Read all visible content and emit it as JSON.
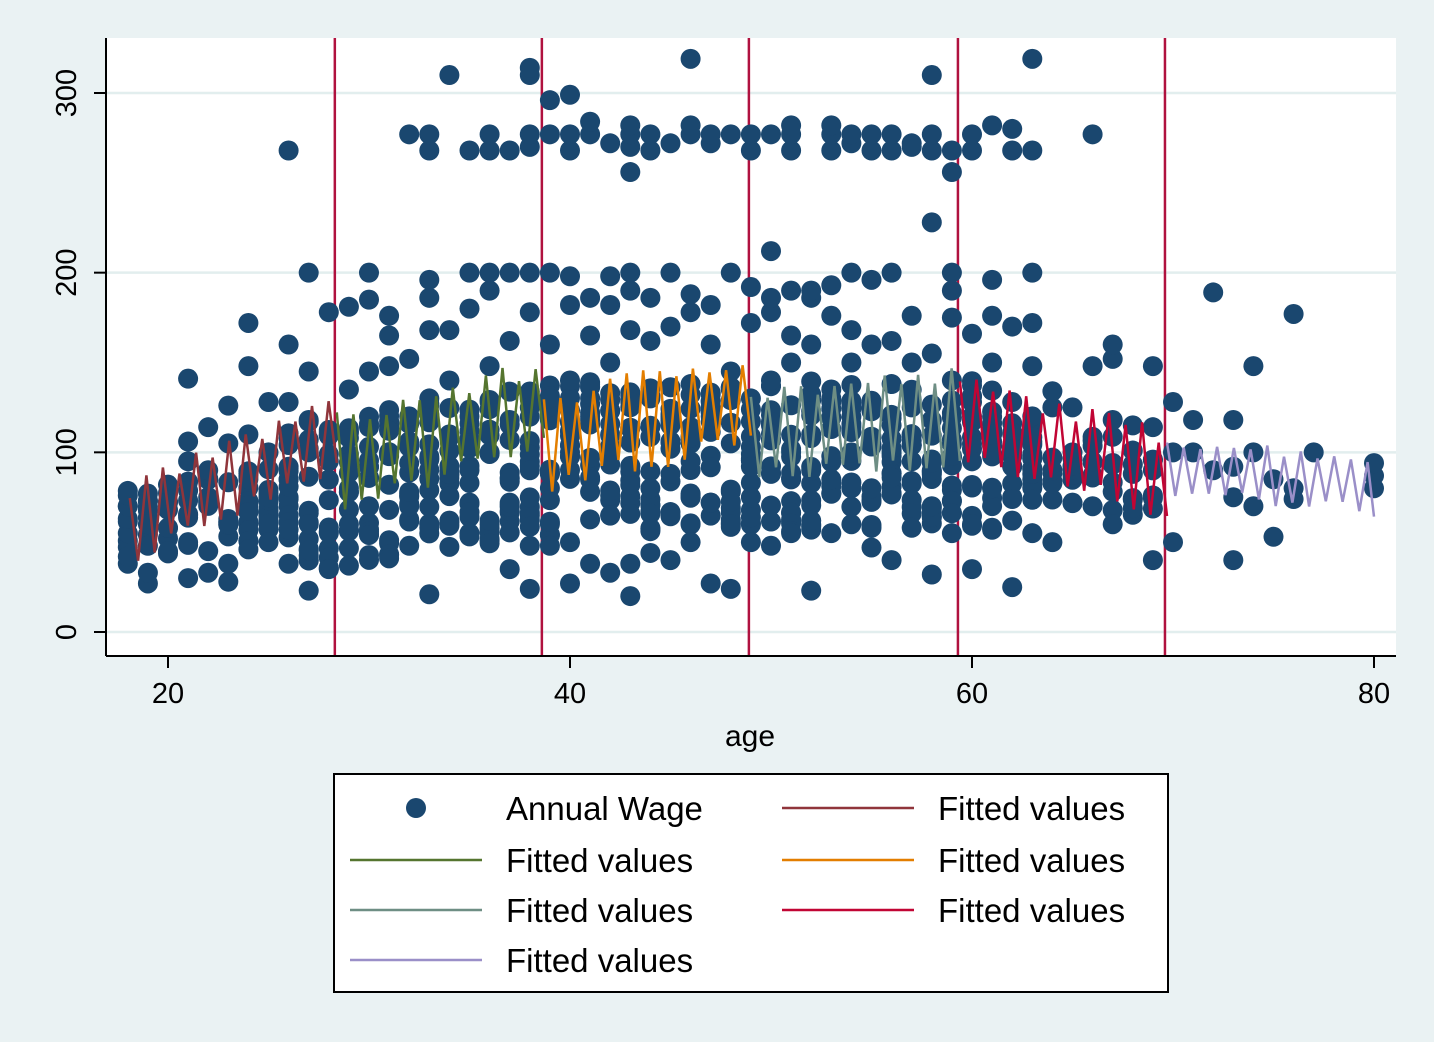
{
  "chart_data": {
    "type": "scatter",
    "title": "",
    "xlabel": "age",
    "ylabel": "",
    "xlim": [
      18,
      80
    ],
    "ylim": [
      -10,
      330
    ],
    "x_ticks": [
      20,
      40,
      60,
      80
    ],
    "y_ticks": [
      0,
      100,
      200,
      300
    ],
    "grid": "horizontal",
    "legend_position": "bottom",
    "knots": [
      28.3,
      38.6,
      48.9,
      59.3,
      69.6
    ],
    "knot_color": "#b0113f",
    "background_color": "#eaf2f3",
    "plot_background": "#ffffff",
    "scatter": {
      "name": "Annual Wage",
      "color": "#1a476f",
      "points": [
        [
          18,
          42
        ],
        [
          18,
          55
        ],
        [
          18,
          63
        ],
        [
          18,
          70
        ],
        [
          18,
          76
        ],
        [
          19,
          27
        ],
        [
          19,
          33
        ],
        [
          19,
          48
        ],
        [
          19,
          60
        ],
        [
          19,
          77
        ],
        [
          20,
          45
        ],
        [
          20,
          58
        ],
        [
          20,
          68
        ],
        [
          20,
          82
        ],
        [
          21,
          30
        ],
        [
          21,
          50
        ],
        [
          21,
          65
        ],
        [
          21,
          95
        ],
        [
          21,
          106
        ],
        [
          21,
          141
        ],
        [
          22,
          33
        ],
        [
          22,
          45
        ],
        [
          22,
          72
        ],
        [
          22,
          90
        ],
        [
          22,
          114
        ],
        [
          23,
          28
        ],
        [
          23,
          38
        ],
        [
          23,
          60
        ],
        [
          23,
          105
        ],
        [
          23,
          126
        ],
        [
          24,
          46
        ],
        [
          24,
          85
        ],
        [
          24,
          110
        ],
        [
          24,
          148
        ],
        [
          24,
          172
        ],
        [
          25,
          50
        ],
        [
          25,
          75
        ],
        [
          25,
          100
        ],
        [
          25,
          128
        ],
        [
          26,
          38
        ],
        [
          26,
          57
        ],
        [
          26,
          92
        ],
        [
          26,
          128
        ],
        [
          26,
          160
        ],
        [
          26,
          268
        ],
        [
          27,
          23
        ],
        [
          27,
          60
        ],
        [
          27,
          118
        ],
        [
          27,
          145
        ],
        [
          27,
          200
        ],
        [
          28,
          35
        ],
        [
          28,
          55
        ],
        [
          28,
          95
        ],
        [
          28,
          178
        ],
        [
          29,
          60
        ],
        [
          29,
          80
        ],
        [
          29,
          108
        ],
        [
          29,
          135
        ],
        [
          29,
          181
        ],
        [
          30,
          54
        ],
        [
          30,
          70
        ],
        [
          30,
          92
        ],
        [
          30,
          145
        ],
        [
          30,
          185
        ],
        [
          30,
          200
        ],
        [
          31,
          41
        ],
        [
          31,
          68
        ],
        [
          31,
          112
        ],
        [
          31,
          148
        ],
        [
          31,
          165
        ],
        [
          31,
          176
        ],
        [
          32,
          48
        ],
        [
          32,
          78
        ],
        [
          32,
          120
        ],
        [
          32,
          152
        ],
        [
          32,
          277
        ],
        [
          33,
          21
        ],
        [
          33,
          58
        ],
        [
          33,
          96
        ],
        [
          33,
          130
        ],
        [
          33,
          168
        ],
        [
          33,
          186
        ],
        [
          33,
          196
        ],
        [
          33,
          268
        ],
        [
          33,
          277
        ],
        [
          34,
          62
        ],
        [
          34,
          88
        ],
        [
          34,
          140
        ],
        [
          34,
          168
        ],
        [
          34,
          310
        ],
        [
          35,
          55
        ],
        [
          35,
          90
        ],
        [
          35,
          120
        ],
        [
          35,
          180
        ],
        [
          35,
          200
        ],
        [
          35,
          268
        ],
        [
          36,
          62
        ],
        [
          36,
          100
        ],
        [
          36,
          148
        ],
        [
          36,
          190
        ],
        [
          36,
          200
        ],
        [
          36,
          268
        ],
        [
          36,
          277
        ],
        [
          37,
          35
        ],
        [
          37,
          72
        ],
        [
          37,
          118
        ],
        [
          37,
          162
        ],
        [
          37,
          200
        ],
        [
          37,
          268
        ],
        [
          38,
          24
        ],
        [
          38,
          48
        ],
        [
          38,
          90
        ],
        [
          38,
          125
        ],
        [
          38,
          178
        ],
        [
          38,
          200
        ],
        [
          38,
          270
        ],
        [
          38,
          277
        ],
        [
          38,
          310
        ],
        [
          38,
          314
        ],
        [
          39,
          48
        ],
        [
          39,
          88
        ],
        [
          39,
          130
        ],
        [
          39,
          160
        ],
        [
          39,
          200
        ],
        [
          39,
          277
        ],
        [
          39,
          296
        ],
        [
          40,
          27
        ],
        [
          40,
          50
        ],
        [
          40,
          100
        ],
        [
          40,
          140
        ],
        [
          40,
          182
        ],
        [
          40,
          198
        ],
        [
          40,
          268
        ],
        [
          40,
          277
        ],
        [
          40,
          299
        ],
        [
          41,
          38
        ],
        [
          41,
          78
        ],
        [
          41,
          120
        ],
        [
          41,
          165
        ],
        [
          41,
          186
        ],
        [
          41,
          277
        ],
        [
          41,
          284
        ],
        [
          42,
          33
        ],
        [
          42,
          65
        ],
        [
          42,
          110
        ],
        [
          42,
          150
        ],
        [
          42,
          182
        ],
        [
          42,
          198
        ],
        [
          42,
          272
        ],
        [
          43,
          20
        ],
        [
          43,
          38
        ],
        [
          43,
          92
        ],
        [
          43,
          128
        ],
        [
          43,
          168
        ],
        [
          43,
          190
        ],
        [
          43,
          200
        ],
        [
          43,
          256
        ],
        [
          43,
          270
        ],
        [
          43,
          277
        ],
        [
          43,
          282
        ],
        [
          44,
          44
        ],
        [
          44,
          80
        ],
        [
          44,
          130
        ],
        [
          44,
          162
        ],
        [
          44,
          186
        ],
        [
          44,
          268
        ],
        [
          44,
          277
        ],
        [
          45,
          40
        ],
        [
          45,
          88
        ],
        [
          45,
          120
        ],
        [
          45,
          170
        ],
        [
          45,
          200
        ],
        [
          45,
          272
        ],
        [
          46,
          50
        ],
        [
          46,
          95
        ],
        [
          46,
          138
        ],
        [
          46,
          178
        ],
        [
          46,
          188
        ],
        [
          46,
          277
        ],
        [
          46,
          282
        ],
        [
          46,
          319
        ],
        [
          47,
          27
        ],
        [
          47,
          72
        ],
        [
          47,
          120
        ],
        [
          47,
          160
        ],
        [
          47,
          182
        ],
        [
          47,
          272
        ],
        [
          47,
          277
        ],
        [
          48,
          24
        ],
        [
          48,
          60
        ],
        [
          48,
          105
        ],
        [
          48,
          145
        ],
        [
          48,
          200
        ],
        [
          48,
          277
        ],
        [
          49,
          50
        ],
        [
          49,
          92
        ],
        [
          49,
          130
        ],
        [
          49,
          172
        ],
        [
          49,
          192
        ],
        [
          49,
          268
        ],
        [
          49,
          277
        ],
        [
          50,
          48
        ],
        [
          50,
          88
        ],
        [
          50,
          140
        ],
        [
          50,
          178
        ],
        [
          50,
          186
        ],
        [
          50,
          212
        ],
        [
          50,
          277
        ],
        [
          51,
          55
        ],
        [
          51,
          100
        ],
        [
          51,
          150
        ],
        [
          51,
          165
        ],
        [
          51,
          190
        ],
        [
          51,
          268
        ],
        [
          51,
          277
        ],
        [
          51,
          282
        ],
        [
          52,
          23
        ],
        [
          52,
          62
        ],
        [
          52,
          108
        ],
        [
          52,
          160
        ],
        [
          52,
          186
        ],
        [
          52,
          190
        ],
        [
          53,
          55
        ],
        [
          53,
          85
        ],
        [
          53,
          135
        ],
        [
          53,
          176
        ],
        [
          53,
          193
        ],
        [
          53,
          268
        ],
        [
          53,
          277
        ],
        [
          53,
          282
        ],
        [
          54,
          60
        ],
        [
          54,
          100
        ],
        [
          54,
          150
        ],
        [
          54,
          168
        ],
        [
          54,
          200
        ],
        [
          54,
          272
        ],
        [
          54,
          277
        ],
        [
          55,
          47
        ],
        [
          55,
          80
        ],
        [
          55,
          125
        ],
        [
          55,
          160
        ],
        [
          55,
          196
        ],
        [
          55,
          268
        ],
        [
          55,
          277
        ],
        [
          56,
          40
        ],
        [
          56,
          86
        ],
        [
          56,
          138
        ],
        [
          56,
          162
        ],
        [
          56,
          200
        ],
        [
          56,
          268
        ],
        [
          56,
          277
        ],
        [
          57,
          58
        ],
        [
          57,
          95
        ],
        [
          57,
          125
        ],
        [
          57,
          150
        ],
        [
          57,
          176
        ],
        [
          57,
          270
        ],
        [
          57,
          272
        ],
        [
          58,
          32
        ],
        [
          58,
          70
        ],
        [
          58,
          118
        ],
        [
          58,
          155
        ],
        [
          58,
          228
        ],
        [
          58,
          268
        ],
        [
          58,
          277
        ],
        [
          58,
          310
        ],
        [
          59,
          55
        ],
        [
          59,
          98
        ],
        [
          59,
          140
        ],
        [
          59,
          175
        ],
        [
          59,
          190
        ],
        [
          59,
          200
        ],
        [
          59,
          256
        ],
        [
          59,
          268
        ],
        [
          60,
          35
        ],
        [
          60,
          60
        ],
        [
          60,
          95
        ],
        [
          60,
          120
        ],
        [
          60,
          166
        ],
        [
          60,
          268
        ],
        [
          60,
          277
        ],
        [
          61,
          58
        ],
        [
          61,
          80
        ],
        [
          61,
          110
        ],
        [
          61,
          150
        ],
        [
          61,
          176
        ],
        [
          61,
          196
        ],
        [
          61,
          282
        ],
        [
          62,
          25
        ],
        [
          62,
          62
        ],
        [
          62,
          92
        ],
        [
          62,
          128
        ],
        [
          62,
          170
        ],
        [
          62,
          268
        ],
        [
          62,
          280
        ],
        [
          63,
          55
        ],
        [
          63,
          88
        ],
        [
          63,
          120
        ],
        [
          63,
          148
        ],
        [
          63,
          172
        ],
        [
          63,
          200
        ],
        [
          63,
          268
        ],
        [
          63,
          319
        ],
        [
          64,
          50
        ],
        [
          64,
          90
        ],
        [
          64,
          125
        ],
        [
          64,
          134
        ],
        [
          65,
          72
        ],
        [
          65,
          100
        ],
        [
          65,
          125
        ],
        [
          66,
          70
        ],
        [
          66,
          95
        ],
        [
          66,
          148
        ],
        [
          66,
          277
        ],
        [
          67,
          60
        ],
        [
          67,
          118
        ],
        [
          67,
          152
        ],
        [
          67,
          160
        ],
        [
          68,
          88
        ],
        [
          68,
          115
        ],
        [
          69,
          40
        ],
        [
          69,
          114
        ],
        [
          69,
          148
        ],
        [
          70,
          50
        ],
        [
          70,
          100
        ],
        [
          70,
          128
        ],
        [
          71,
          100
        ],
        [
          71,
          118
        ],
        [
          72,
          90
        ],
        [
          72,
          189
        ],
        [
          73,
          40
        ],
        [
          73,
          75
        ],
        [
          73,
          118
        ],
        [
          73,
          92
        ],
        [
          74,
          70
        ],
        [
          74,
          100
        ],
        [
          74,
          148
        ],
        [
          75,
          53
        ],
        [
          75,
          85
        ],
        [
          76,
          74
        ],
        [
          76,
          80
        ],
        [
          76,
          177
        ],
        [
          77,
          100
        ],
        [
          80,
          80
        ],
        [
          80,
          87
        ],
        [
          80,
          94
        ]
      ]
    },
    "fit_series": [
      {
        "name": "Fitted values",
        "color": "#90353b",
        "x_range": [
          18,
          28.3
        ],
        "base": [
          60,
          110
        ],
        "amp": 24
      },
      {
        "name": "Fitted values",
        "color": "#55752f",
        "x_range": [
          28.3,
          38.6
        ],
        "base": [
          95,
          125
        ],
        "amp": 28
      },
      {
        "name": "Fitted values",
        "color": "#e37e00",
        "x_range": [
          38.6,
          48.9
        ],
        "base": [
          105,
          130
        ],
        "amp": 30
      },
      {
        "name": "Fitted values",
        "color": "#6e8e84",
        "x_range": [
          48.9,
          59.3
        ],
        "base": [
          110,
          120
        ],
        "amp": 28
      },
      {
        "name": "Fitted values",
        "color": "#c10534",
        "x_range": [
          59.3,
          69.6
        ],
        "base": [
          118,
          88
        ],
        "amp": 26
      },
      {
        "name": "Fitted values",
        "color": "#9a8fc8",
        "x_range": [
          69.6,
          80
        ],
        "base": [
          92,
          82
        ],
        "amp": 18
      }
    ],
    "legend": [
      {
        "label": "Annual Wage",
        "kind": "marker",
        "color": "#1a476f"
      },
      {
        "label": "Fitted values",
        "kind": "line",
        "color": "#90353b"
      },
      {
        "label": "Fitted values",
        "kind": "line",
        "color": "#55752f"
      },
      {
        "label": "Fitted values",
        "kind": "line",
        "color": "#e37e00"
      },
      {
        "label": "Fitted values",
        "kind": "line",
        "color": "#6e8e84"
      },
      {
        "label": "Fitted values",
        "kind": "line",
        "color": "#c10534"
      },
      {
        "label": "Fitted values",
        "kind": "line",
        "color": "#9a8fc8"
      }
    ]
  }
}
